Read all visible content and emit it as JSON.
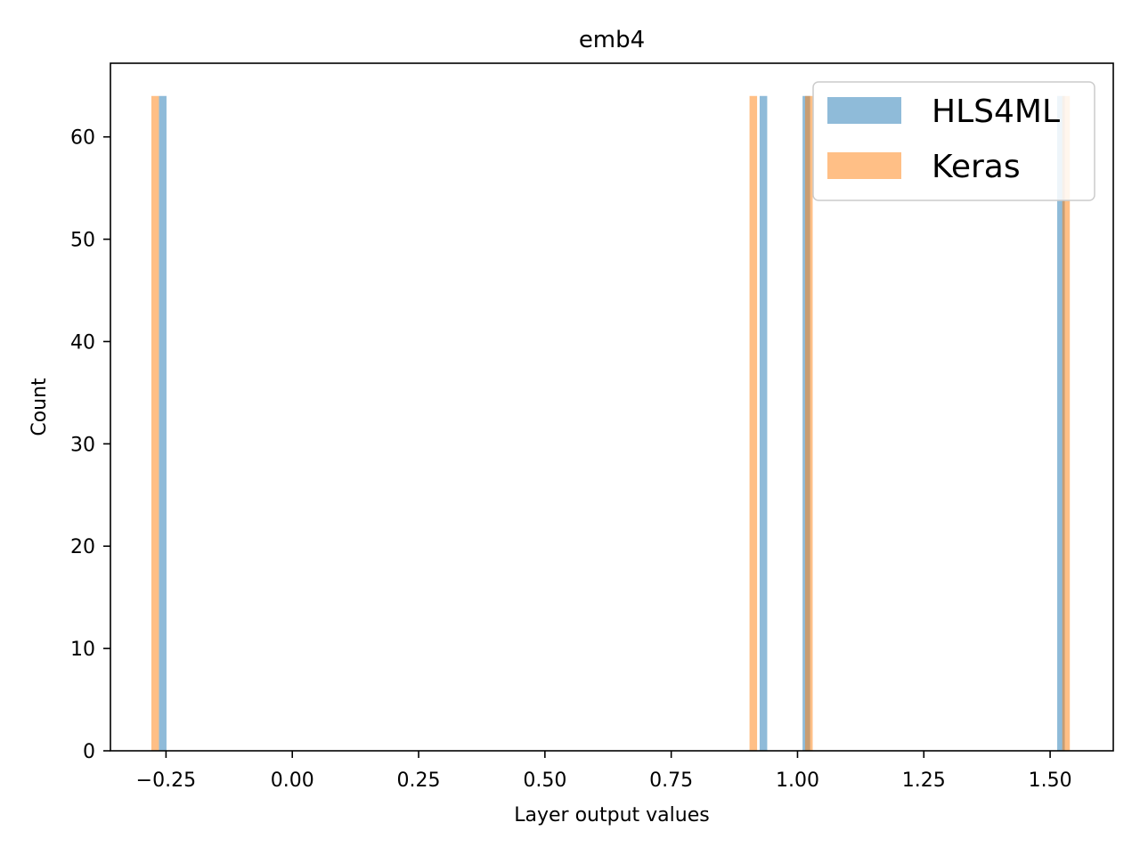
{
  "chart_data": {
    "type": "histogram",
    "title": "emb4",
    "xlabel": "Layer output values",
    "ylabel": "Count",
    "xlim": [
      -0.36,
      1.625
    ],
    "ylim": [
      0,
      67.2
    ],
    "xticks": [
      -0.25,
      0.0,
      0.25,
      0.5,
      0.75,
      1.0,
      1.25,
      1.5
    ],
    "xtick_labels": [
      "−0.25",
      "0.00",
      "0.25",
      "0.50",
      "0.75",
      "1.00",
      "1.25",
      "1.50"
    ],
    "yticks": [
      0,
      10,
      20,
      30,
      40,
      50,
      60
    ],
    "ytick_labels": [
      "0",
      "10",
      "20",
      "30",
      "40",
      "50",
      "60"
    ],
    "grid": false,
    "legend_position": "top-right",
    "series": [
      {
        "name": "HLS4ML",
        "color": "#1f77b4",
        "opacity": 0.5,
        "bars": [
          {
            "x0": -0.264,
            "x1": -0.249,
            "count": 64
          },
          {
            "x0": 0.925,
            "x1": 0.94,
            "count": 64
          },
          {
            "x0": 1.01,
            "x1": 1.025,
            "count": 64
          },
          {
            "x0": 1.514,
            "x1": 1.529,
            "count": 64
          }
        ]
      },
      {
        "name": "Keras",
        "color": "#ff7f0e",
        "opacity": 0.5,
        "bars": [
          {
            "x0": -0.279,
            "x1": -0.264,
            "count": 64
          },
          {
            "x0": 0.905,
            "x1": 0.92,
            "count": 64
          },
          {
            "x0": 1.015,
            "x1": 1.03,
            "count": 64
          },
          {
            "x0": 1.524,
            "x1": 1.539,
            "count": 64
          }
        ]
      }
    ]
  }
}
